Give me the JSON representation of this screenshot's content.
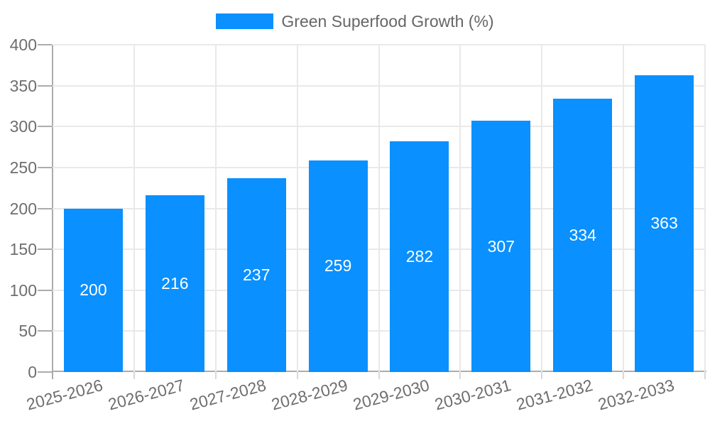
{
  "chart_data": {
    "type": "bar",
    "title": "",
    "categories": [
      "2025-2026",
      "2026-2027",
      "2027-2028",
      "2028-2029",
      "2029-2030",
      "2030-2031",
      "2031-2032",
      "2032-2033"
    ],
    "series": [
      {
        "name": "Green Superfood Growth (%)",
        "color": "#0A90FF",
        "values": [
          200,
          216,
          237,
          259,
          282,
          307,
          334,
          363
        ]
      }
    ],
    "yticks": [
      0,
      50,
      100,
      150,
      200,
      250,
      300,
      350,
      400
    ],
    "ylim": [
      0,
      400
    ],
    "xlabel": "",
    "ylabel": "",
    "grid": true,
    "legend_position": "top",
    "x_label_rotation_deg": -15,
    "bar_value_label_color": "#FFFFFF",
    "colors": {
      "grid": "#E9E9E9",
      "x_tick": "#D8D8D8",
      "axis": "#ACACAC",
      "tick_label": "#6E6E6E",
      "legend_text": "#666666",
      "background": "#FFFFFF"
    }
  }
}
